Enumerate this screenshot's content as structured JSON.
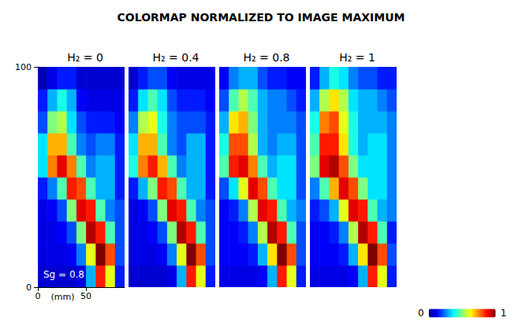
{
  "chart_data": {
    "type": "heatmap",
    "title": "COLORMAP NORMALIZED TO IMAGE MAXIMUM",
    "xlabel": "(mm)",
    "annotation": "Sg = 0.8",
    "xlim": [
      0,
      90
    ],
    "ylim": [
      0,
      100
    ],
    "xticks": [
      0,
      50
    ],
    "yticks": [
      0,
      100
    ],
    "x": [
      5,
      15,
      25,
      35,
      45,
      55,
      65,
      75,
      85
    ],
    "y": [
      5,
      15,
      25,
      35,
      45,
      55,
      65,
      75,
      85,
      95
    ],
    "colorbar": {
      "range": [
        0,
        1
      ],
      "ticks": [
        0,
        1
      ]
    },
    "panels": [
      {
        "title": "H₂ = 0",
        "values": [
          [
            0.08,
            0.08,
            0.08,
            0.08,
            0.1,
            0.3,
            0.85,
            0.6,
            0.15
          ],
          [
            0.1,
            0.1,
            0.1,
            0.12,
            0.25,
            0.6,
            1.0,
            0.8,
            0.2
          ],
          [
            0.1,
            0.1,
            0.12,
            0.2,
            0.5,
            0.95,
            0.85,
            0.45,
            0.2
          ],
          [
            0.1,
            0.12,
            0.2,
            0.5,
            0.9,
            0.85,
            0.45,
            0.25,
            0.2
          ],
          [
            0.15,
            0.25,
            0.45,
            0.85,
            0.8,
            0.45,
            0.3,
            0.3,
            0.15
          ],
          [
            0.35,
            0.75,
            0.9,
            0.75,
            0.45,
            0.25,
            0.3,
            0.3,
            0.15
          ],
          [
            0.35,
            0.7,
            0.7,
            0.45,
            0.25,
            0.2,
            0.25,
            0.25,
            0.15
          ],
          [
            0.2,
            0.5,
            0.55,
            0.35,
            0.2,
            0.15,
            0.15,
            0.15,
            0.12
          ],
          [
            0.15,
            0.3,
            0.4,
            0.3,
            0.12,
            0.1,
            0.1,
            0.1,
            0.1
          ],
          [
            0.05,
            0.1,
            0.15,
            0.15,
            0.08,
            0.08,
            0.08,
            0.08,
            0.08
          ]
        ]
      },
      {
        "title": "H₂ = 0.4",
        "values": [
          [
            0.08,
            0.08,
            0.08,
            0.08,
            0.1,
            0.3,
            0.85,
            0.6,
            0.15
          ],
          [
            0.1,
            0.1,
            0.1,
            0.12,
            0.25,
            0.6,
            1.0,
            0.8,
            0.2
          ],
          [
            0.1,
            0.1,
            0.12,
            0.2,
            0.5,
            0.95,
            0.85,
            0.45,
            0.2
          ],
          [
            0.1,
            0.12,
            0.2,
            0.5,
            0.9,
            0.85,
            0.45,
            0.25,
            0.2
          ],
          [
            0.15,
            0.3,
            0.5,
            0.85,
            0.8,
            0.45,
            0.3,
            0.3,
            0.15
          ],
          [
            0.4,
            0.75,
            0.85,
            0.7,
            0.45,
            0.25,
            0.3,
            0.3,
            0.15
          ],
          [
            0.35,
            0.7,
            0.7,
            0.45,
            0.25,
            0.2,
            0.3,
            0.3,
            0.15
          ],
          [
            0.25,
            0.55,
            0.6,
            0.4,
            0.25,
            0.2,
            0.2,
            0.2,
            0.15
          ],
          [
            0.15,
            0.35,
            0.45,
            0.35,
            0.2,
            0.15,
            0.15,
            0.15,
            0.12
          ],
          [
            0.08,
            0.15,
            0.2,
            0.2,
            0.12,
            0.1,
            0.1,
            0.1,
            0.1
          ]
        ]
      },
      {
        "title": "H₂ = 0.8",
        "values": [
          [
            0.1,
            0.1,
            0.1,
            0.1,
            0.12,
            0.3,
            0.85,
            0.6,
            0.15
          ],
          [
            0.12,
            0.12,
            0.12,
            0.15,
            0.3,
            0.65,
            1.0,
            0.8,
            0.2
          ],
          [
            0.12,
            0.12,
            0.15,
            0.25,
            0.55,
            0.95,
            0.85,
            0.45,
            0.2
          ],
          [
            0.12,
            0.15,
            0.25,
            0.55,
            0.9,
            0.85,
            0.45,
            0.3,
            0.25
          ],
          [
            0.2,
            0.35,
            0.6,
            0.9,
            0.8,
            0.45,
            0.35,
            0.35,
            0.2
          ],
          [
            0.45,
            0.85,
            0.9,
            0.75,
            0.45,
            0.3,
            0.35,
            0.35,
            0.2
          ],
          [
            0.4,
            0.8,
            0.8,
            0.55,
            0.3,
            0.25,
            0.3,
            0.3,
            0.2
          ],
          [
            0.3,
            0.65,
            0.7,
            0.5,
            0.3,
            0.25,
            0.25,
            0.25,
            0.2
          ],
          [
            0.2,
            0.45,
            0.55,
            0.45,
            0.3,
            0.25,
            0.25,
            0.2,
            0.15
          ],
          [
            0.12,
            0.25,
            0.3,
            0.3,
            0.2,
            0.15,
            0.15,
            0.12,
            0.12
          ]
        ]
      },
      {
        "title": "H₂ = 1",
        "values": [
          [
            0.1,
            0.1,
            0.1,
            0.1,
            0.12,
            0.3,
            0.85,
            0.6,
            0.15
          ],
          [
            0.12,
            0.12,
            0.12,
            0.15,
            0.3,
            0.65,
            1.0,
            0.8,
            0.2
          ],
          [
            0.12,
            0.12,
            0.15,
            0.25,
            0.55,
            0.95,
            0.85,
            0.45,
            0.15
          ],
          [
            0.15,
            0.2,
            0.3,
            0.6,
            0.9,
            0.85,
            0.45,
            0.3,
            0.25
          ],
          [
            0.25,
            0.45,
            0.7,
            0.9,
            0.8,
            0.5,
            0.35,
            0.35,
            0.25
          ],
          [
            0.5,
            0.9,
            0.95,
            0.8,
            0.5,
            0.35,
            0.35,
            0.35,
            0.25
          ],
          [
            0.45,
            0.85,
            0.85,
            0.65,
            0.4,
            0.3,
            0.35,
            0.35,
            0.25
          ],
          [
            0.4,
            0.75,
            0.8,
            0.6,
            0.4,
            0.3,
            0.3,
            0.3,
            0.25
          ],
          [
            0.3,
            0.55,
            0.65,
            0.55,
            0.35,
            0.3,
            0.3,
            0.25,
            0.2
          ],
          [
            0.15,
            0.3,
            0.4,
            0.35,
            0.25,
            0.2,
            0.2,
            0.15,
            0.15
          ]
        ]
      }
    ]
  }
}
